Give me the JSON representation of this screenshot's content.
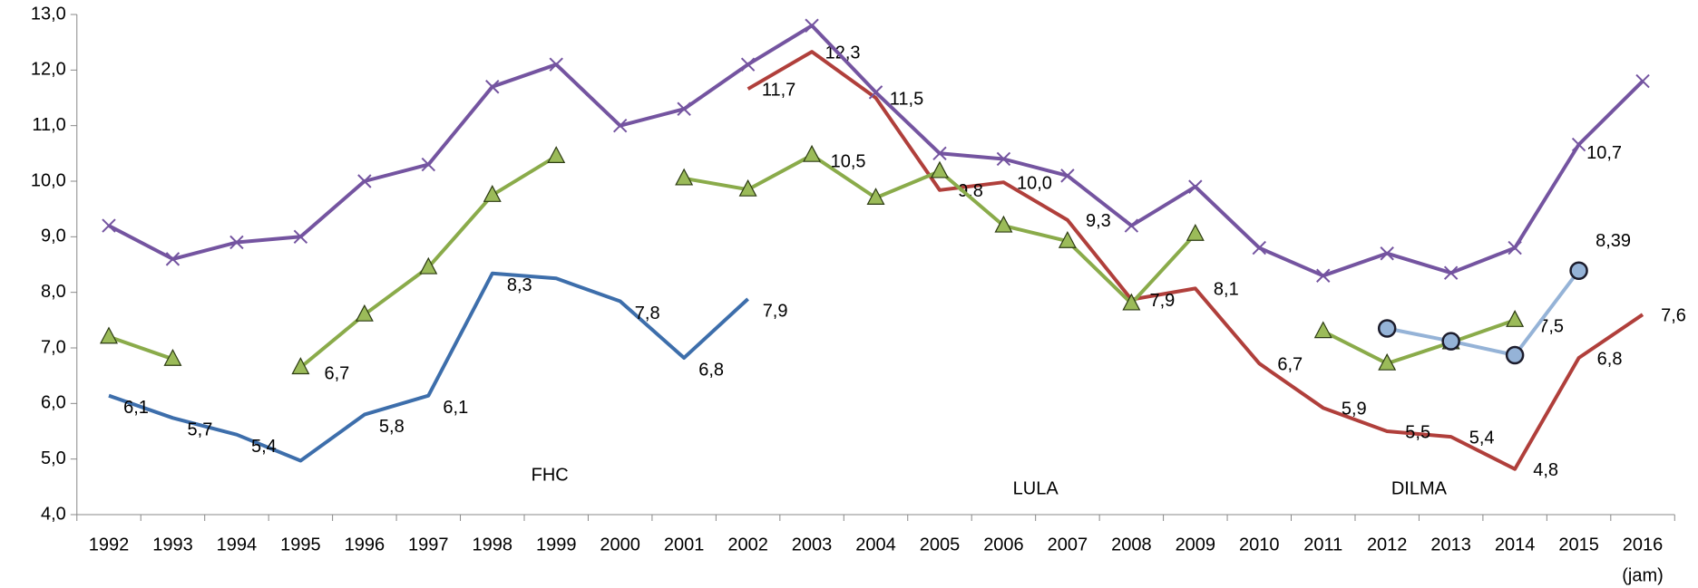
{
  "chart_data": {
    "type": "line",
    "categories": [
      "1992",
      "1993",
      "1994",
      "1995",
      "1996",
      "1997",
      "1998",
      "1999",
      "2000",
      "2001",
      "2002",
      "2003",
      "2004",
      "2005",
      "2006",
      "2007",
      "2008",
      "2009",
      "2010",
      "2011",
      "2012",
      "2013",
      "2014",
      "2015",
      "2016"
    ],
    "x_note": "(jam)",
    "ylim": [
      4,
      13
    ],
    "yticks": [
      {
        "value": 4,
        "label": "4,0"
      },
      {
        "value": 5,
        "label": "5,0"
      },
      {
        "value": 6,
        "label": "6,0"
      },
      {
        "value": 7,
        "label": "7,0"
      },
      {
        "value": 8,
        "label": "8,0"
      },
      {
        "value": 9,
        "label": "9,0"
      },
      {
        "value": 10,
        "label": "10,0"
      },
      {
        "value": 11,
        "label": "11,0"
      },
      {
        "value": 12,
        "label": "12,0"
      },
      {
        "value": 13,
        "label": "13,0"
      }
    ],
    "annotations": [
      {
        "text": "FHC",
        "x": 1998.9,
        "y": 4.7
      },
      {
        "text": "LULA",
        "x": 2006.5,
        "y": 4.45
      },
      {
        "text": "DILMA",
        "x": 2012.5,
        "y": 4.45
      }
    ],
    "series": [
      {
        "color": "#3d6eab",
        "marker": "none",
        "values": [
          6.14,
          5.74,
          5.44,
          4.97,
          5.8,
          6.14,
          8.34,
          8.25,
          7.84,
          6.82,
          7.88,
          null,
          null,
          null,
          null,
          null,
          null,
          null,
          null,
          null,
          null,
          null,
          null,
          null,
          null
        ],
        "value_labels": [
          "6,1",
          "5,7",
          "5,4",
          null,
          "5,8",
          "6,1",
          "8,3",
          null,
          "7,8",
          "6,8",
          "7,9",
          null,
          null,
          null,
          null,
          null,
          null,
          null,
          null,
          null,
          null,
          null,
          null,
          null,
          null
        ]
      },
      {
        "color": "#b03f3b",
        "marker": "none",
        "values": [
          null,
          null,
          null,
          null,
          null,
          null,
          null,
          null,
          null,
          null,
          11.66,
          12.33,
          11.5,
          9.84,
          9.98,
          9.3,
          7.87,
          8.07,
          6.72,
          5.92,
          5.5,
          5.4,
          4.82,
          6.82,
          7.6
        ],
        "value_labels": [
          null,
          null,
          null,
          null,
          null,
          null,
          null,
          null,
          null,
          null,
          "11,7",
          "12,3",
          "11,5",
          "9,8",
          "10,0",
          "9,3",
          "7,9",
          "8,1",
          "6,7",
          "5,9",
          "5,5",
          "5,4",
          "4,8",
          "6,8",
          "7,6"
        ]
      },
      {
        "color": "#8aab4a",
        "marker": "triangle",
        "values": [
          7.2,
          6.8,
          null,
          6.65,
          7.6,
          8.45,
          9.75,
          10.45,
          null,
          10.05,
          9.85,
          10.47,
          9.7,
          10.18,
          9.2,
          8.92,
          7.8,
          9.05,
          null,
          7.3,
          6.72,
          7.1,
          7.5,
          null,
          null
        ],
        "value_labels": [
          null,
          null,
          null,
          "6,7",
          null,
          null,
          null,
          null,
          null,
          null,
          null,
          "10,5",
          null,
          null,
          null,
          null,
          null,
          null,
          null,
          null,
          null,
          null,
          "7,5",
          null,
          null
        ]
      },
      {
        "color": "#95b3d7",
        "marker": "circle",
        "values": [
          null,
          null,
          null,
          null,
          null,
          null,
          null,
          null,
          null,
          null,
          null,
          null,
          null,
          null,
          null,
          null,
          null,
          null,
          null,
          null,
          7.35,
          7.12,
          6.87,
          8.39,
          null
        ],
        "value_labels": [
          null,
          null,
          null,
          null,
          null,
          null,
          null,
          null,
          null,
          null,
          null,
          null,
          null,
          null,
          null,
          null,
          null,
          null,
          null,
          null,
          null,
          null,
          null,
          "8,39",
          null
        ]
      },
      {
        "color": "#7454a0",
        "marker": "x",
        "values": [
          9.2,
          8.6,
          8.9,
          9.0,
          10.0,
          10.3,
          11.7,
          12.1,
          11.0,
          11.3,
          12.1,
          12.8,
          11.6,
          10.5,
          10.4,
          10.1,
          9.2,
          9.9,
          8.8,
          8.3,
          8.7,
          8.35,
          8.8,
          10.66,
          11.8
        ],
        "value_labels": [
          null,
          null,
          null,
          null,
          null,
          null,
          null,
          null,
          null,
          null,
          null,
          null,
          null,
          null,
          null,
          null,
          null,
          null,
          null,
          null,
          null,
          null,
          null,
          "10,7",
          null
        ]
      }
    ]
  }
}
